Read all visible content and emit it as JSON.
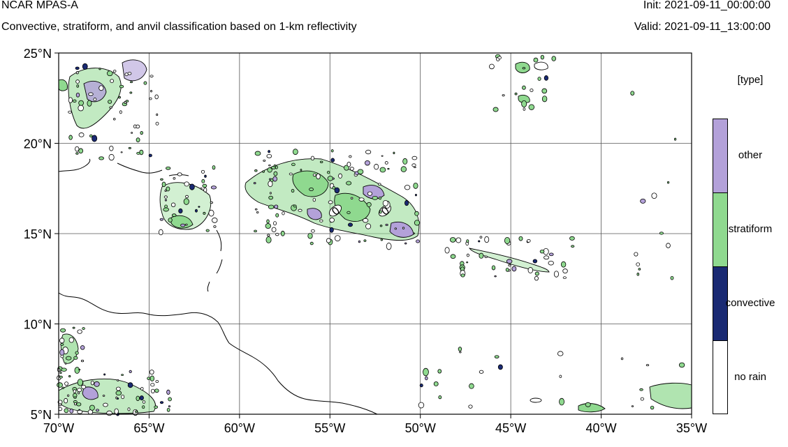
{
  "header": {
    "title": "NCAR MPAS-A",
    "subtitle": "Convective, stratiform, and anvil classification based on 1-km reflectivity",
    "init": "Init: 2021-09-11_00:00:00",
    "valid": "Valid: 2021-09-11_13:00:00"
  },
  "map": {
    "lat_ticks": [
      "25°N",
      "20°N",
      "15°N",
      "10°N",
      "5°N"
    ],
    "lon_ticks": [
      "70°W",
      "65°W",
      "60°W",
      "55°W",
      "50°W",
      "45°W",
      "40°W",
      "35°W"
    ],
    "lat_range": [
      5,
      25
    ],
    "lon_range": [
      -70,
      -35
    ],
    "grid": true,
    "contour_labels": [
      "0",
      "0"
    ]
  },
  "legend": {
    "title": "[type]",
    "items": [
      {
        "label": "other",
        "color": "#b3a1d9"
      },
      {
        "label": "stratiform",
        "color": "#8fd98f"
      },
      {
        "label": "convective",
        "color": "#1a2a73"
      },
      {
        "label": "no rain",
        "color": "#ffffff"
      }
    ]
  },
  "colors": {
    "grid": "#555555",
    "coast": "#000000"
  }
}
